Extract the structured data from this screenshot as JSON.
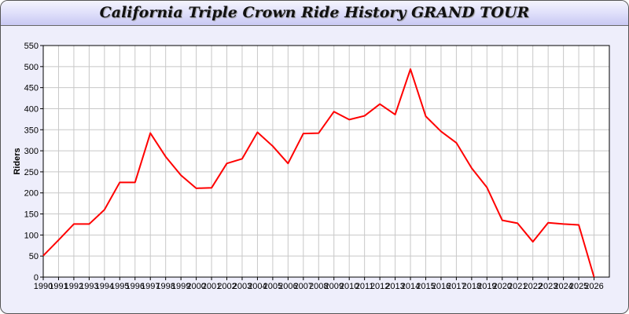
{
  "title": "California Triple Crown Ride History GRAND TOUR",
  "chart_data": {
    "type": "line",
    "title": "California Triple Crown Ride History GRAND TOUR",
    "xlabel": "",
    "ylabel": "Riders",
    "x": [
      1990,
      1991,
      1992,
      1993,
      1994,
      1995,
      1996,
      1997,
      1998,
      1999,
      2000,
      2001,
      2002,
      2003,
      2004,
      2005,
      2006,
      2007,
      2008,
      2009,
      2010,
      2011,
      2012,
      2013,
      2014,
      2015,
      2016,
      2017,
      2018,
      2019,
      2020,
      2021,
      2022,
      2023,
      2024,
      2025,
      2026
    ],
    "series": [
      {
        "color": "#ff0000",
        "values": [
          51,
          88,
          126,
          126,
          160,
          225,
          225,
          342,
          286,
          242,
          211,
          212,
          270,
          281,
          344,
          311,
          270,
          341,
          342,
          393,
          374,
          383,
          411,
          386,
          494,
          382,
          346,
          319,
          259,
          213,
          135,
          128,
          84,
          129,
          126,
          124,
          0
        ]
      }
    ],
    "xlim": [
      1990,
      2027
    ],
    "ylim": [
      0,
      550
    ],
    "yticks": [
      0,
      50,
      100,
      150,
      200,
      250,
      300,
      350,
      400,
      450,
      500,
      550
    ],
    "grid": true,
    "legend": "none"
  }
}
